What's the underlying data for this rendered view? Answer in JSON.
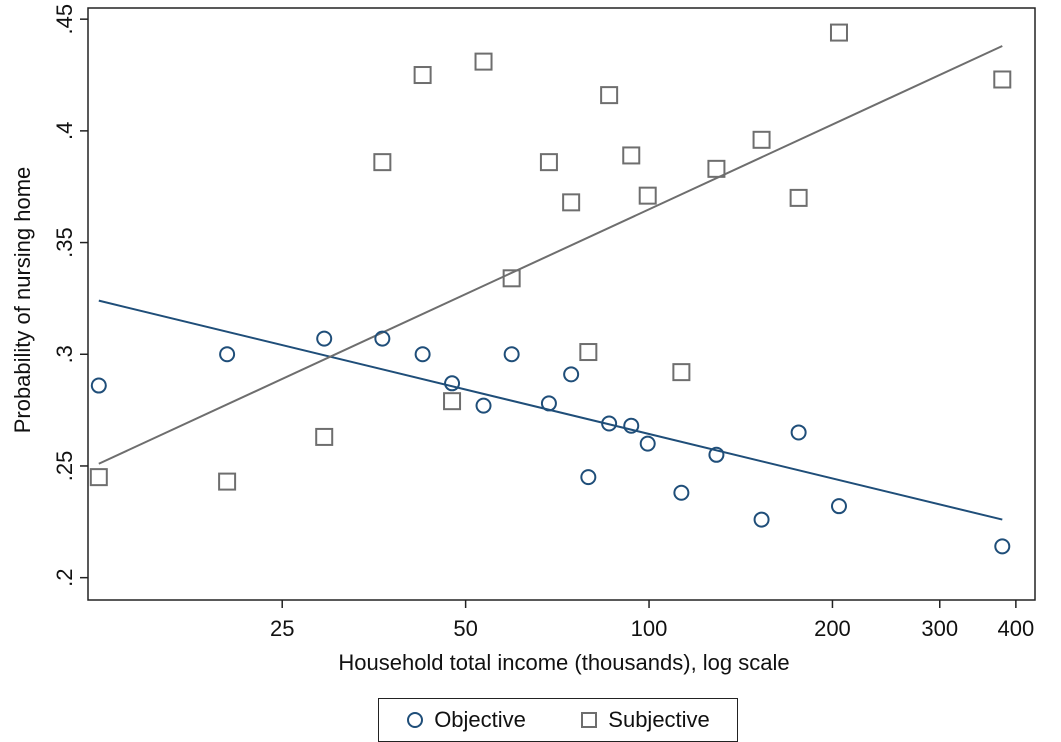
{
  "chart_data": {
    "type": "scatter",
    "title": "",
    "xlabel": "Household total income (thousands), log scale",
    "ylabel": "Probability of nursing home",
    "x_scale": "log",
    "x_ticks": [
      25,
      50,
      100,
      200,
      300,
      400
    ],
    "x_tick_labels": [
      "25",
      "50",
      "100",
      "200",
      "300",
      "400"
    ],
    "xlim": [
      12,
      430
    ],
    "y_ticks": [
      0.2,
      0.25,
      0.3,
      0.35,
      0.4,
      0.45
    ],
    "y_tick_labels": [
      ".2",
      ".25",
      ".3",
      ".35",
      ".4",
      ".45"
    ],
    "ylim": [
      0.19,
      0.455
    ],
    "grid": false,
    "legend_position": "bottom",
    "series": [
      {
        "name": "Objective",
        "marker": "circle",
        "color": "#1f4e79",
        "points": [
          {
            "x": 12.5,
            "y": 0.286
          },
          {
            "x": 20.3,
            "y": 0.3
          },
          {
            "x": 29.3,
            "y": 0.307
          },
          {
            "x": 36.5,
            "y": 0.307
          },
          {
            "x": 42.5,
            "y": 0.3
          },
          {
            "x": 47.5,
            "y": 0.287
          },
          {
            "x": 53.5,
            "y": 0.277
          },
          {
            "x": 59.5,
            "y": 0.3
          },
          {
            "x": 68.5,
            "y": 0.278
          },
          {
            "x": 74.5,
            "y": 0.291
          },
          {
            "x": 79.5,
            "y": 0.245
          },
          {
            "x": 86.0,
            "y": 0.269
          },
          {
            "x": 93.5,
            "y": 0.268
          },
          {
            "x": 99.5,
            "y": 0.26
          },
          {
            "x": 113.0,
            "y": 0.238
          },
          {
            "x": 129.0,
            "y": 0.255
          },
          {
            "x": 153.0,
            "y": 0.226
          },
          {
            "x": 176.0,
            "y": 0.265
          },
          {
            "x": 205.0,
            "y": 0.232
          },
          {
            "x": 380.0,
            "y": 0.214
          }
        ],
        "fit": {
          "x": [
            12.5,
            380.0
          ],
          "y": [
            0.324,
            0.226
          ]
        }
      },
      {
        "name": "Subjective",
        "marker": "square",
        "color": "#6e6e6e",
        "points": [
          {
            "x": 12.5,
            "y": 0.245
          },
          {
            "x": 20.3,
            "y": 0.243
          },
          {
            "x": 29.3,
            "y": 0.263
          },
          {
            "x": 36.5,
            "y": 0.386
          },
          {
            "x": 42.5,
            "y": 0.425
          },
          {
            "x": 47.5,
            "y": 0.279
          },
          {
            "x": 53.5,
            "y": 0.431
          },
          {
            "x": 59.5,
            "y": 0.334
          },
          {
            "x": 68.5,
            "y": 0.386
          },
          {
            "x": 74.5,
            "y": 0.368
          },
          {
            "x": 79.5,
            "y": 0.301
          },
          {
            "x": 86.0,
            "y": 0.416
          },
          {
            "x": 93.5,
            "y": 0.389
          },
          {
            "x": 99.5,
            "y": 0.371
          },
          {
            "x": 113.0,
            "y": 0.292
          },
          {
            "x": 129.0,
            "y": 0.383
          },
          {
            "x": 153.0,
            "y": 0.396
          },
          {
            "x": 176.0,
            "y": 0.37
          },
          {
            "x": 205.0,
            "y": 0.444
          },
          {
            "x": 380.0,
            "y": 0.423
          }
        ],
        "fit": {
          "x": [
            12.5,
            380.0
          ],
          "y": [
            0.251,
            0.438
          ]
        }
      }
    ]
  },
  "legend": {
    "objective_label": "Objective",
    "subjective_label": "Subjective"
  }
}
